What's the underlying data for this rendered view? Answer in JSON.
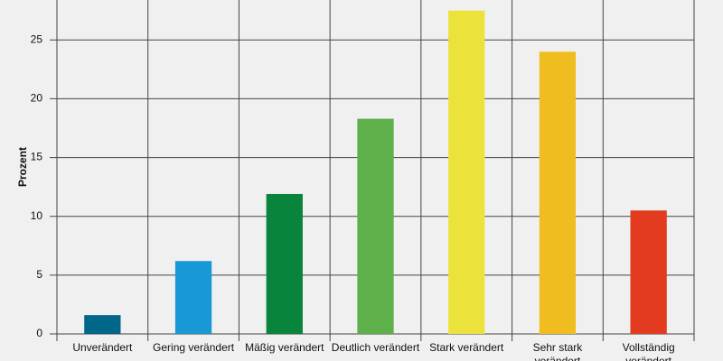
{
  "chart_data": {
    "type": "bar",
    "y_label": "Prozent",
    "categories": [
      "Unverändert",
      "Gering verändert",
      "Mäßig verändert",
      "Deutlich verändert",
      "Stark verändert",
      "Sehr stark verändert",
      "Vollständig verändert"
    ],
    "values": [
      1.6,
      6.2,
      11.9,
      18.3,
      27.5,
      24.0,
      10.5
    ],
    "colors": [
      "#00678a",
      "#1899d6",
      "#08843c",
      "#5db04a",
      "#ebe33c",
      "#efbd1f",
      "#e23b1f"
    ],
    "ylim": [
      0,
      28.4
    ],
    "yticks": [
      0,
      5,
      10,
      15,
      20,
      25
    ],
    "grid": true
  }
}
